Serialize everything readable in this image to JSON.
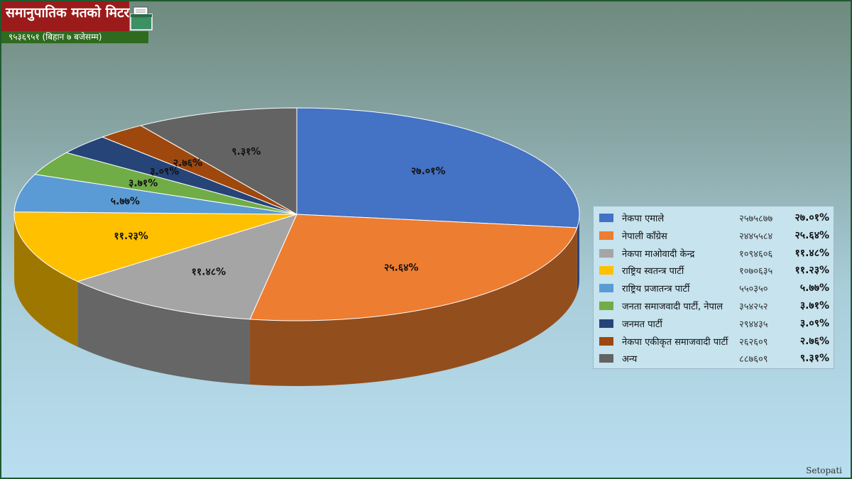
{
  "header": {
    "title": "समानुपातिक मतको मिटर",
    "total_votes_note": "९५३६९५१ (बिहान ७ बजेसम्म)"
  },
  "watermark": "Setopati",
  "chart_data": {
    "type": "pie",
    "title": "",
    "series": [
      {
        "name": "नेकपा एमाले",
        "votes_label": "२५७५८७७",
        "pct_label": "२७.०१%",
        "value": 27.01,
        "color": "#4472c4"
      },
      {
        "name": "नेपाली काँग्रेस",
        "votes_label": "२४४५५८४",
        "pct_label": "२५.६४%",
        "value": 25.64,
        "color": "#ed7d31"
      },
      {
        "name": "नेकपा माओवादी केन्द्र",
        "votes_label": "१०९४६०६",
        "pct_label": "११.४८%",
        "value": 11.48,
        "color": "#a5a5a5"
      },
      {
        "name": "राष्ट्रिय स्वतन्त्र पार्टी",
        "votes_label": "१०७०६३५",
        "pct_label": "११.२३%",
        "value": 11.23,
        "color": "#ffc000"
      },
      {
        "name": "राष्ट्रिय प्रजातन्त्र पार्टी",
        "votes_label": "५५०३५०",
        "pct_label": "५.७७%",
        "value": 5.77,
        "color": "#5b9bd5"
      },
      {
        "name": "जनता समाजवादी पार्टी, नेपाल",
        "votes_label": "३५४२५२",
        "pct_label": "३.७१%",
        "value": 3.71,
        "color": "#70ad47"
      },
      {
        "name": "जनमत पार्टी",
        "votes_label": "२९४४३५",
        "pct_label": "३.०९%",
        "value": 3.09,
        "color": "#264478"
      },
      {
        "name": "नेकपा एकीकृत समाजवादी पार्टी",
        "votes_label": "२६२६०९",
        "pct_label": "२.७६%",
        "value": 2.76,
        "color": "#9e480e"
      },
      {
        "name": "अन्य",
        "votes_label": "८८७६०९",
        "pct_label": "९.३१%",
        "value": 9.31,
        "color": "#636363"
      }
    ],
    "legend_position": "right"
  }
}
